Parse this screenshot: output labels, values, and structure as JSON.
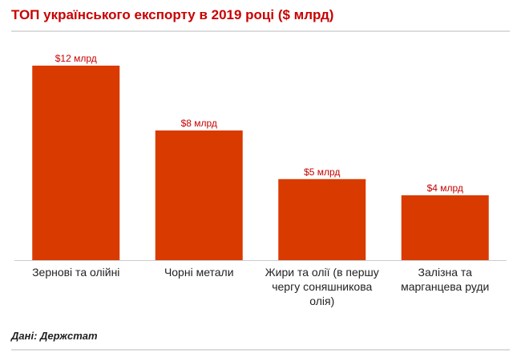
{
  "header": {
    "title": "ТОП українського експорту в 2019 році ($ млрд)"
  },
  "footer": {
    "source": "Дані: Держстат"
  },
  "colors": {
    "bar": "#d93a00",
    "label": "#c80000",
    "axis_text": "#222222"
  },
  "chart_data": {
    "type": "bar",
    "title": "ТОП українського експорту в 2019 році ($ млрд)",
    "categories": [
      [
        "Зернові та олійні"
      ],
      [
        "Чорні метали"
      ],
      [
        "Жири та олії (в першу",
        "чергу соняшникова",
        "олія)"
      ],
      [
        "Залізна та",
        "марганцева руди"
      ]
    ],
    "values": [
      12,
      8,
      5,
      4
    ],
    "data_labels": [
      "$12 млрд",
      "$8 млрд",
      "$5 млрд",
      "$4 млрд"
    ],
    "xlabel": "",
    "ylabel": "",
    "ylim": [
      0,
      12
    ],
    "grid": false,
    "legend": "none"
  }
}
